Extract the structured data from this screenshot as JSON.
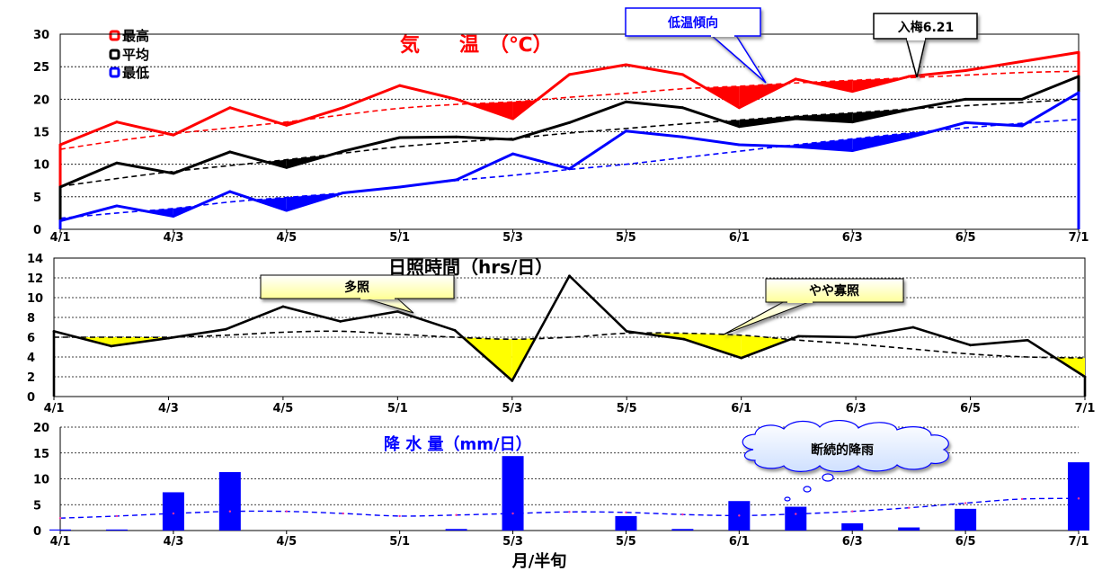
{
  "chart_data": [
    {
      "type": "line",
      "title": "気　　温　（℃）",
      "ylim": [
        0,
        30
      ],
      "yticks": [
        "0",
        "5",
        "10",
        "15",
        "20",
        "25",
        "30"
      ],
      "xticks": [
        {
          "label": "4/1",
          "x": 1
        },
        {
          "label": "4/3",
          "x": 3
        },
        {
          "label": "4/5",
          "x": 5
        },
        {
          "label": "5/1",
          "x": 7
        },
        {
          "label": "5/3",
          "x": 9
        },
        {
          "label": "5/5",
          "x": 11
        },
        {
          "label": "6/1",
          "x": 13
        },
        {
          "label": "6/3",
          "x": 15
        },
        {
          "label": "6/5",
          "x": 17
        },
        {
          "label": "7/1",
          "x": 19
        }
      ],
      "x": [
        1,
        2,
        3,
        4,
        5,
        6,
        7,
        8,
        9,
        10,
        11,
        12,
        13,
        14,
        15,
        16,
        17,
        18,
        19
      ],
      "legend": [
        {
          "name": "最高",
          "color": "#ff0000"
        },
        {
          "name": "平均",
          "color": "#000000"
        },
        {
          "name": "最低",
          "color": "#0000ff"
        }
      ],
      "series": [
        {
          "name": "最高",
          "color": "#ff0000",
          "values": [
            13.0,
            16.5,
            14.5,
            18.7,
            16.0,
            18.7,
            22.1,
            20.0,
            17.0,
            23.8,
            25.3,
            23.8,
            18.7,
            23.1,
            21.2,
            23.5,
            24.4,
            25.8,
            27.2
          ],
          "normal": [
            12.3,
            13.6,
            14.7,
            15.6,
            16.5,
            17.6,
            18.6,
            19.2,
            19.6,
            20.3,
            20.9,
            21.6,
            22.0,
            22.5,
            22.9,
            23.3,
            23.7,
            24.1,
            24.3
          ]
        },
        {
          "name": "平均",
          "color": "#000000",
          "values": [
            6.5,
            10.2,
            8.6,
            11.9,
            9.5,
            12.0,
            14.1,
            14.2,
            13.8,
            16.4,
            19.6,
            18.7,
            15.8,
            17.0,
            16.5,
            18.4,
            20.0,
            20.0,
            23.5
          ],
          "normal": [
            6.6,
            7.8,
            8.9,
            9.8,
            10.7,
            11.7,
            12.7,
            13.4,
            14.0,
            14.8,
            15.5,
            16.2,
            16.8,
            17.4,
            17.9,
            18.5,
            19.0,
            19.5,
            20.0
          ]
        },
        {
          "name": "最低",
          "color": "#0000ff",
          "values": [
            1.3,
            3.6,
            2.0,
            5.8,
            2.9,
            5.6,
            6.5,
            7.6,
            11.6,
            9.3,
            15.1,
            14.2,
            13.0,
            12.7,
            12.1,
            14.1,
            16.4,
            15.9,
            21.0
          ],
          "normal": [
            1.7,
            2.5,
            3.2,
            4.2,
            4.9,
            5.6,
            6.5,
            7.5,
            8.3,
            9.2,
            10.0,
            11.0,
            12.0,
            13.0,
            13.9,
            14.8,
            15.6,
            16.3,
            16.9
          ]
        }
      ],
      "annotations": [
        {
          "text": "低温傾向",
          "style": "blue"
        },
        {
          "text": "入梅6.21",
          "style": "black"
        }
      ]
    },
    {
      "type": "line",
      "title": "日照時間（hrs/日）",
      "ylim": [
        0,
        14
      ],
      "yticks": [
        "0",
        "2",
        "4",
        "6",
        "8",
        "10",
        "12",
        "14"
      ],
      "xticks": [
        {
          "label": "4/1",
          "x": 1
        },
        {
          "label": "4/3",
          "x": 3
        },
        {
          "label": "4/5",
          "x": 5
        },
        {
          "label": "5/1",
          "x": 7
        },
        {
          "label": "5/3",
          "x": 9
        },
        {
          "label": "5/5",
          "x": 11
        },
        {
          "label": "6/1",
          "x": 13
        },
        {
          "label": "6/3",
          "x": 15
        },
        {
          "label": "6/5",
          "x": 17
        },
        {
          "label": "7/1",
          "x": 19
        }
      ],
      "x": [
        1,
        2,
        3,
        4,
        5,
        6,
        7,
        8,
        9,
        10,
        11,
        12,
        13,
        14,
        15,
        16,
        17,
        18,
        19
      ],
      "values": [
        6.6,
        5.1,
        5.9,
        6.8,
        9.1,
        7.6,
        8.6,
        6.7,
        1.6,
        12.2,
        6.6,
        5.8,
        3.9,
        6.1,
        6.0,
        7.0,
        5.2,
        5.7,
        2.0
      ],
      "normal": [
        6.0,
        6.0,
        6.0,
        6.2,
        6.5,
        6.6,
        6.3,
        6.0,
        5.8,
        6.0,
        6.4,
        6.4,
        6.2,
        5.7,
        5.3,
        4.8,
        4.3,
        4.0,
        3.9
      ],
      "annotations": [
        {
          "text": "多照"
        },
        {
          "text": "やや寡照"
        }
      ]
    },
    {
      "type": "bar",
      "title": "降 水 量（mm/日）",
      "xlabel": "月/半旬",
      "ylim": [
        0,
        20
      ],
      "yticks": [
        "0",
        "5",
        "10",
        "15",
        "20"
      ],
      "xticks": [
        {
          "label": "4/1",
          "x": 1
        },
        {
          "label": "4/3",
          "x": 3
        },
        {
          "label": "4/5",
          "x": 5
        },
        {
          "label": "5/1",
          "x": 7
        },
        {
          "label": "5/3",
          "x": 9
        },
        {
          "label": "5/5",
          "x": 11
        },
        {
          "label": "6/1",
          "x": 13
        },
        {
          "label": "6/3",
          "x": 15
        },
        {
          "label": "6/5",
          "x": 17
        },
        {
          "label": "7/1",
          "x": 19
        }
      ],
      "x": [
        1,
        2,
        3,
        4,
        5,
        6,
        7,
        8,
        9,
        10,
        11,
        12,
        13,
        14,
        15,
        16,
        17,
        18,
        19
      ],
      "values": [
        0.2,
        0.2,
        7.4,
        11.3,
        0,
        0,
        0,
        0.3,
        14.4,
        0,
        2.8,
        0.3,
        5.7,
        4.6,
        1.4,
        0.6,
        4.2,
        0,
        13.2
      ],
      "normal": [
        2.4,
        2.8,
        3.3,
        3.7,
        3.7,
        3.3,
        2.8,
        3.0,
        3.3,
        3.6,
        3.5,
        3.1,
        2.9,
        3.2,
        3.7,
        4.4,
        5.3,
        6.1,
        6.2
      ],
      "annotations": [
        {
          "text": "断続的降雨"
        }
      ]
    }
  ]
}
